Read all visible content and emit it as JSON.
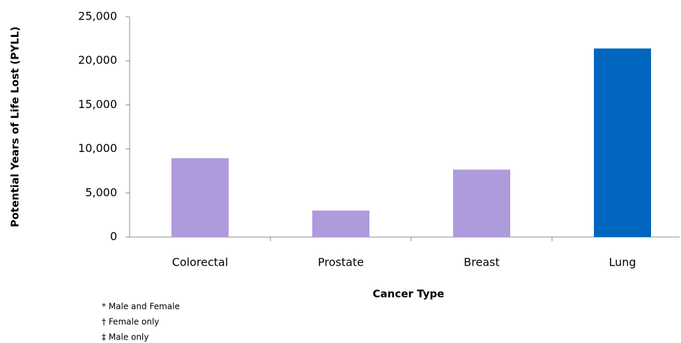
{
  "chart_data": {
    "type": "bar",
    "x_label": "Cancer Type",
    "y_label": "Potential Years of Life Lost (PYLL)",
    "categories": [
      "Colorectal",
      "Prostate",
      "Breast",
      "Lung"
    ],
    "values": [
      8950,
      3000,
      7650,
      21400
    ],
    "colors": [
      "#ae9bdc",
      "#ae9bdc",
      "#ae9bdc",
      "#0066bf"
    ],
    "ylim": [
      0,
      25000
    ],
    "yticks": [
      0,
      {
        "value": 5000,
        "label": "5,000"
      },
      {
        "value": 10000,
        "label": "10,000"
      },
      {
        "value": 15000,
        "label": "15,000"
      },
      {
        "value": 20000,
        "label": "20,000"
      },
      {
        "value": 25000,
        "label": "25,000"
      }
    ],
    "grid": false,
    "notes": [
      "* Male and Female",
      "† Female only",
      "‡ Male only"
    ]
  }
}
